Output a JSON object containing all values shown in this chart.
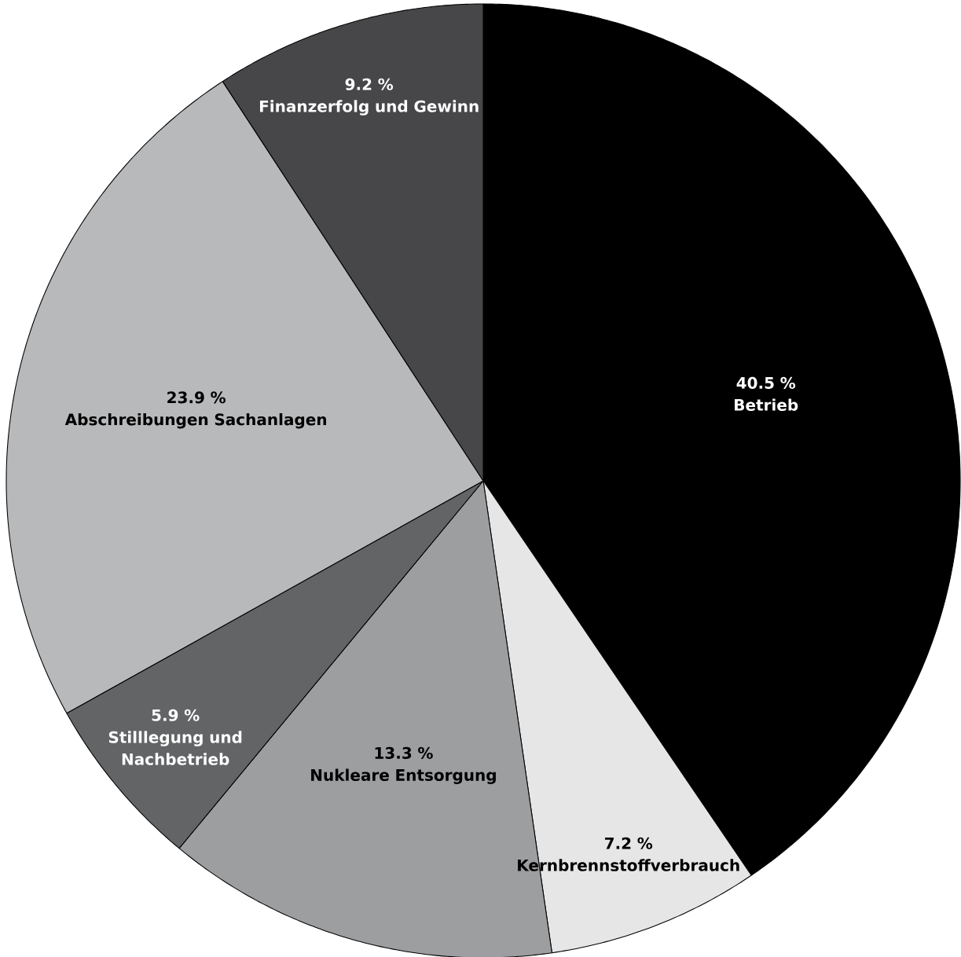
{
  "chart_data": {
    "type": "pie",
    "categories": [
      "Betrieb",
      "Kernbrennstoffverbrauch",
      "Nukleare Entsorgung",
      "Stilllegung und Nachbetrieb",
      "Abschreibungen Sachanlagen",
      "Finanzerfolg und Gewinn"
    ],
    "values": [
      40.5,
      7.2,
      13.3,
      5.9,
      23.9,
      9.2
    ],
    "value_labels": [
      "40.5 %",
      "7.2 %",
      "13.3 %",
      "5.9 %",
      "23.9 %",
      "9.2 %"
    ],
    "colors": [
      "#000000",
      "#e6e6e6",
      "#9d9ea0",
      "#636466",
      "#b8b9bb",
      "#47474a"
    ]
  }
}
